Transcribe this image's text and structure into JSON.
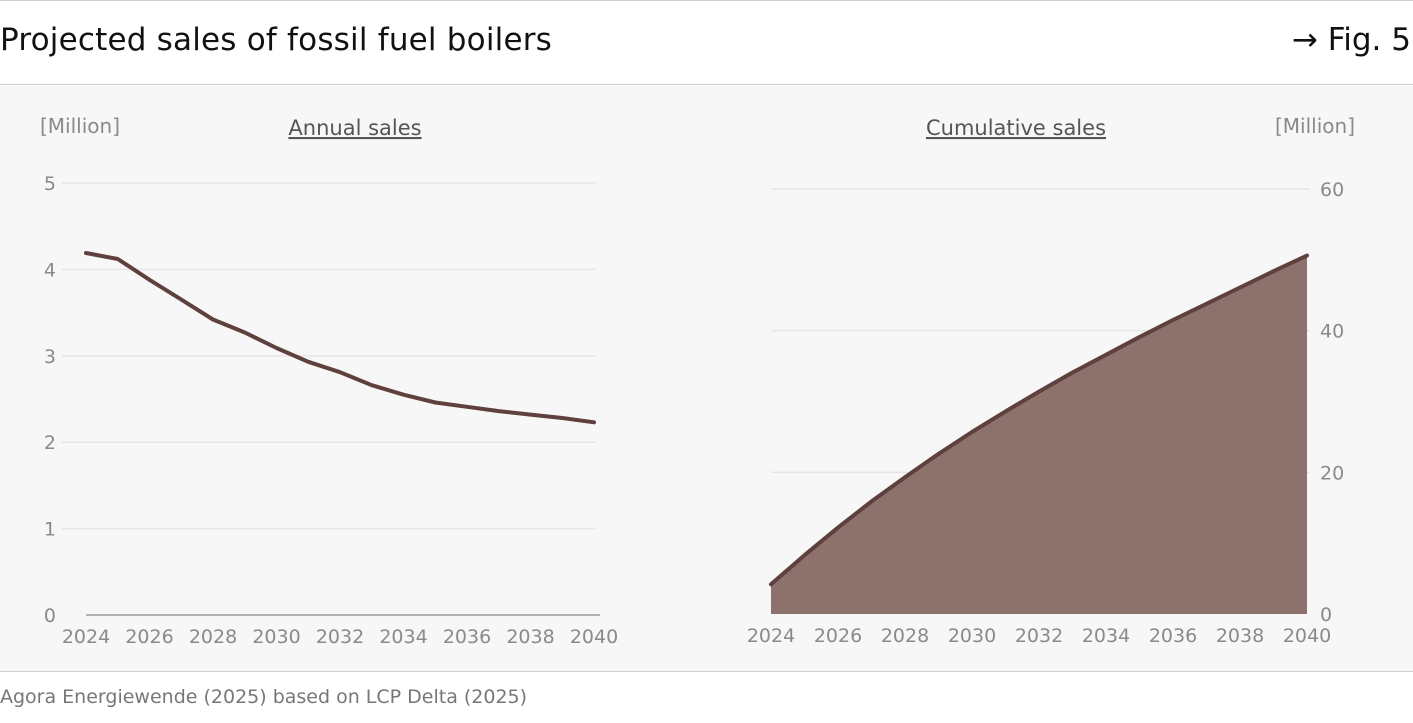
{
  "header": {
    "title": "Projected sales of fossil fuel boilers",
    "fig_ref": "→ Fig. 5"
  },
  "footer": {
    "source": "Agora Energiewende (2025) based on LCP Delta (2025)"
  },
  "colors": {
    "line": "#5e403d",
    "area": "#8c716c",
    "grid": "#e6e6e6",
    "axis_text": "#8a8a8a",
    "background": "#f7f7f7"
  },
  "chart_data": [
    {
      "type": "line",
      "title": "Annual sales",
      "unit_label": "[Million]",
      "x": [
        2024,
        2025,
        2026,
        2027,
        2028,
        2029,
        2030,
        2031,
        2032,
        2033,
        2034,
        2035,
        2036,
        2037,
        2038,
        2039,
        2040
      ],
      "values": [
        4.19,
        4.12,
        3.88,
        3.65,
        3.42,
        3.27,
        3.09,
        2.93,
        2.81,
        2.66,
        2.55,
        2.46,
        2.41,
        2.36,
        2.32,
        2.28,
        2.23
      ],
      "x_ticks": [
        "2024",
        "2026",
        "2028",
        "2030",
        "2032",
        "2034",
        "2036",
        "2038",
        "2040"
      ],
      "y_ticks": [
        "0",
        "1",
        "2",
        "3",
        "4",
        "5"
      ],
      "ylim": [
        0,
        5
      ],
      "xlim": [
        2024,
        2040
      ],
      "grid": true
    },
    {
      "type": "area",
      "title": "Cumulative sales",
      "unit_label": "[Million]",
      "x": [
        2024,
        2025,
        2026,
        2027,
        2028,
        2029,
        2030,
        2031,
        2032,
        2033,
        2034,
        2035,
        2036,
        2037,
        2038,
        2039,
        2040
      ],
      "values": [
        4.2,
        8.3,
        12.2,
        15.9,
        19.3,
        22.6,
        25.7,
        28.6,
        31.4,
        34.1,
        36.6,
        39.1,
        41.5,
        43.8,
        46.1,
        48.4,
        50.6
      ],
      "x_ticks": [
        "2024",
        "2026",
        "2028",
        "2030",
        "2032",
        "2034",
        "2036",
        "2038",
        "2040"
      ],
      "y_ticks": [
        "0",
        "20",
        "40",
        "60"
      ],
      "ylim": [
        0,
        60
      ],
      "xlim": [
        2024,
        2040
      ],
      "grid": true
    }
  ]
}
